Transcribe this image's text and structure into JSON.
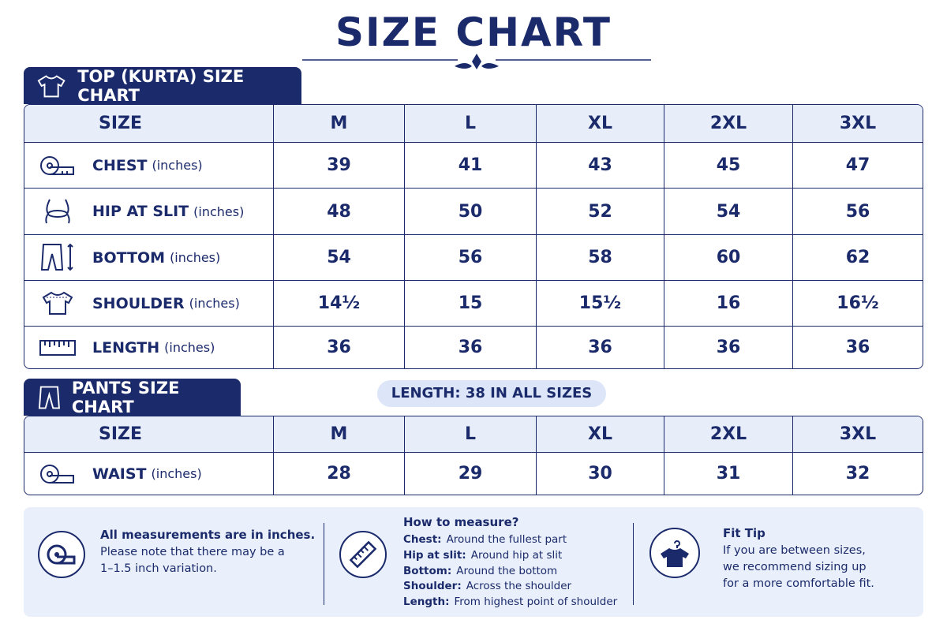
{
  "title": "SIZE CHART",
  "top": {
    "title": "TOP (KURTA) SIZE CHART",
    "header": [
      "SIZE",
      "M",
      "L",
      "XL",
      "2XL",
      "3XL"
    ],
    "rows": [
      {
        "label": "CHEST",
        "unit": "(inches)",
        "cells": [
          39,
          41,
          43,
          45,
          47
        ]
      },
      {
        "label": "HIP AT SLIT",
        "unit": "(inches)",
        "cells": [
          48,
          50,
          52,
          54,
          56
        ]
      },
      {
        "label": "BOTTOM",
        "unit": "(inches)",
        "cells": [
          54,
          56,
          58,
          60,
          62
        ]
      },
      {
        "label": "SHOULDER",
        "unit": "(inches)",
        "cells": [
          "14½",
          15,
          "15½",
          16,
          "16½"
        ]
      },
      {
        "label": "LENGTH",
        "unit": "(inches)",
        "cells": [
          36,
          36,
          36,
          36,
          36
        ]
      }
    ]
  },
  "pants": {
    "title": "PANTS SIZE CHART",
    "note": "LENGTH: 38 IN ALL SIZES",
    "header": [
      "SIZE",
      "M",
      "L",
      "XL",
      "2XL",
      "3XL"
    ],
    "rows": [
      {
        "label": "WAIST",
        "unit": "(inches)",
        "cells": [
          28,
          29,
          30,
          31,
          32
        ]
      }
    ]
  },
  "info": {
    "units": {
      "title": "All measurements are in inches.",
      "lines": [
        "Please note that there may be a",
        "1–1.5 inch variation."
      ]
    },
    "how": {
      "title": "How to measure?",
      "items": [
        {
          "term": "Chest:",
          "desc": "Around the fullest part"
        },
        {
          "term": "Hip at slit:",
          "desc": "Around hip at slit"
        },
        {
          "term": "Bottom:",
          "desc": "Around the bottom"
        },
        {
          "term": "Shoulder:",
          "desc": "Across the shoulder"
        },
        {
          "term": "Length:",
          "desc": "From highest point of shoulder"
        }
      ]
    },
    "tip": {
      "title": "Fit Tip",
      "lines": [
        "If you are between sizes,",
        "we recommend sizing up",
        "for a more comfortable fit."
      ]
    }
  }
}
